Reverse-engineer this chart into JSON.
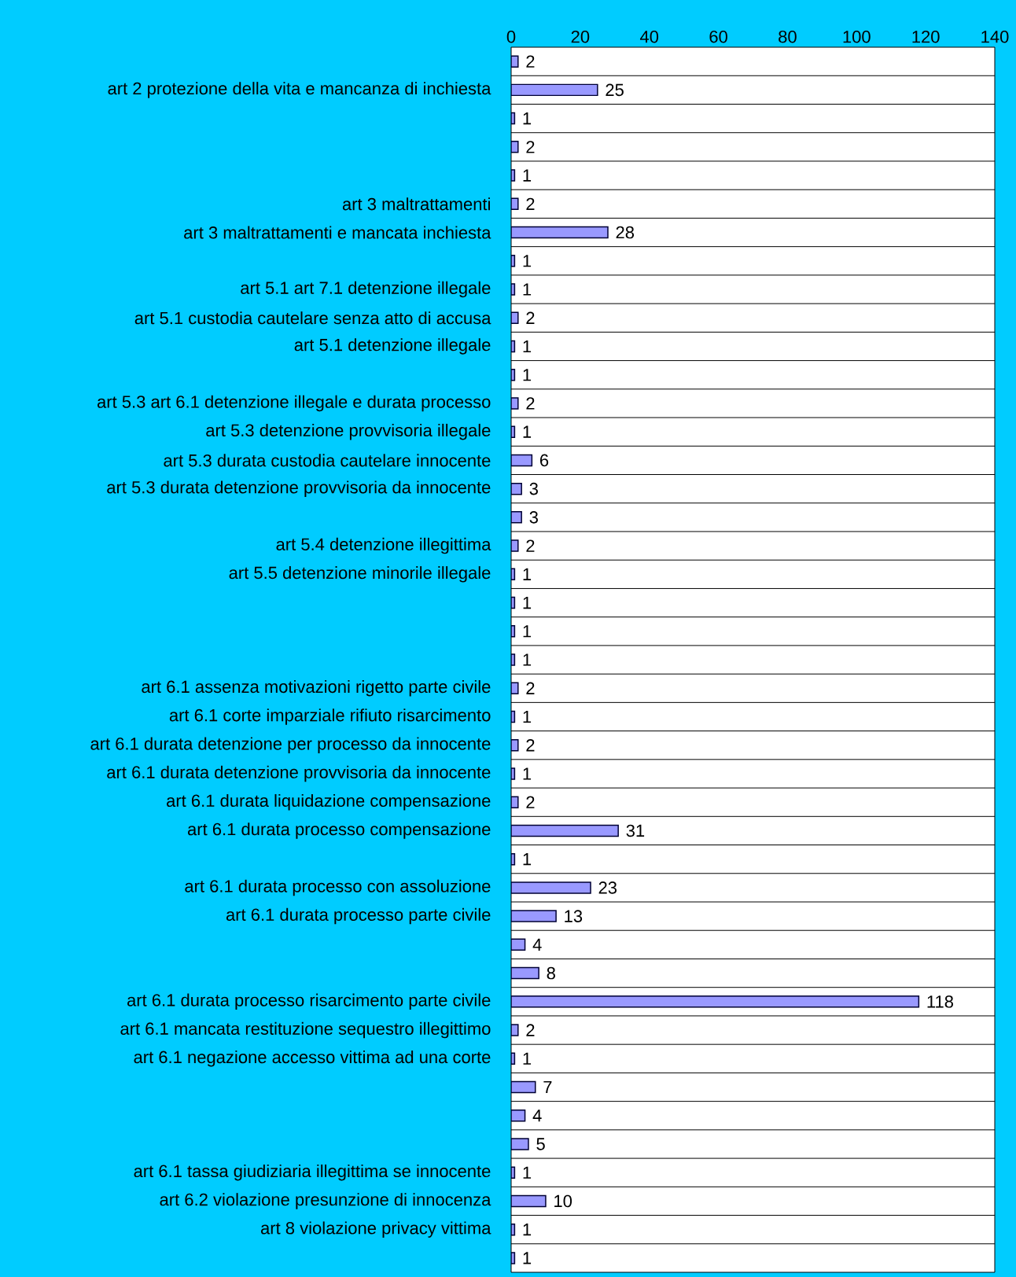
{
  "chart_data": {
    "type": "bar",
    "orientation": "horizontal",
    "color": "#9999ff",
    "categories": [
      null,
      "art 2 protezione della vita e mancanza di inchiesta",
      null,
      null,
      null,
      "art 3 maltrattamenti",
      "art 3 maltrattamenti e mancata inchiesta",
      null,
      "art 5.1 art 7.1 detenzione illegale",
      "art 5.1 custodia cautelare senza atto di accusa",
      "art 5.1 detenzione illegale",
      null,
      "art 5.3 art 6.1 detenzione illegale e durata processo",
      "art 5.3 detenzione provvisoria illegale",
      "art 5.3 durata custodia cautelare innocente",
      "art 5.3 durata detenzione provvisoria da innocente",
      null,
      "art 5.4 detenzione illegittima",
      "art 5.5 detenzione minorile illegale",
      null,
      null,
      null,
      "art 6.1 assenza motivazioni rigetto parte civile",
      "art 6.1 corte imparziale rifiuto risarcimento",
      "art 6.1 durata detenzione per processo da innocente",
      "art 6.1 durata detenzione provvisoria da innocente",
      "art 6.1 durata liquidazione compensazione",
      "art 6.1 durata processo compensazione",
      null,
      "art 6.1 durata processo con assoluzione",
      "art 6.1 durata processo parte civile",
      null,
      null,
      "art 6.1 durata processo risarcimento parte civile",
      "art 6.1 mancata restituzione sequestro illegittimo",
      "art 6.1 negazione accesso vittima ad una corte",
      null,
      null,
      null,
      "art 6.1 tassa giudiziaria illegittima se innocente",
      "art 6.2 violazione presunzione di innocenza",
      "art 8 violazione privacy vittima",
      null
    ],
    "values": [
      2,
      25,
      1,
      2,
      1,
      2,
      28,
      1,
      1,
      2,
      1,
      1,
      2,
      1,
      6,
      3,
      3,
      2,
      1,
      1,
      1,
      1,
      2,
      1,
      2,
      1,
      2,
      31,
      1,
      23,
      13,
      4,
      8,
      118,
      2,
      1,
      7,
      4,
      5,
      1,
      10,
      1,
      1
    ],
    "xlim": [
      0,
      140
    ],
    "xticks": [
      0,
      20,
      40,
      60,
      80,
      100,
      120,
      140
    ],
    "data_labels": true,
    "grid": "y"
  }
}
